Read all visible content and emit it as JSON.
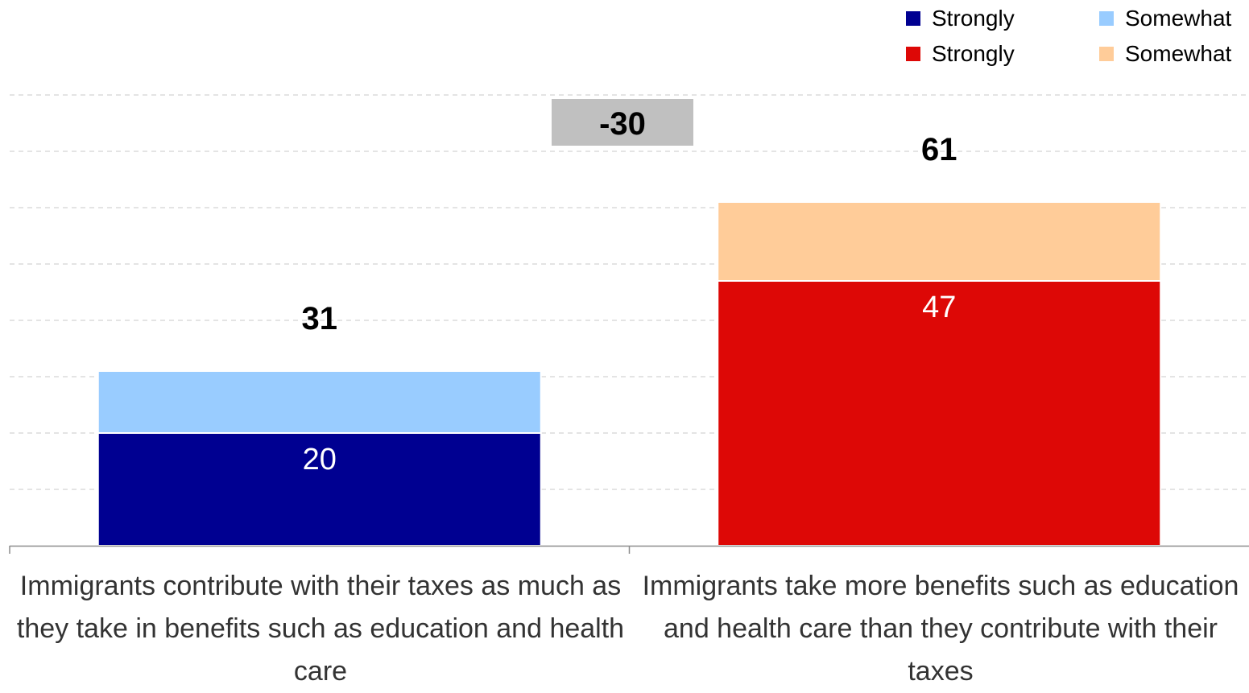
{
  "chart_data": {
    "type": "bar",
    "stacked": true,
    "title": "",
    "categories": [
      "Immigrants contribute with their taxes as much as they take in benefits such as education and health care",
      "Immigrants take more benefits such as education and health care than they contribute with their taxes"
    ],
    "bars": [
      {
        "category_index": 0,
        "segments": [
          {
            "legend": "Strongly",
            "value": 20,
            "label": "20",
            "color": "#000091"
          },
          {
            "legend": "Somewhat",
            "value": 11,
            "label": "",
            "color": "#99ccff"
          }
        ],
        "total": 31,
        "total_label": "31"
      },
      {
        "category_index": 1,
        "segments": [
          {
            "legend": "Strongly",
            "value": 47,
            "label": "47",
            "color": "#dd0806"
          },
          {
            "legend": "Somewhat",
            "value": 14,
            "label": "",
            "color": "#ffcc99"
          }
        ],
        "total": 61,
        "total_label": "61"
      }
    ],
    "difference_label": "-30",
    "difference_box_color": "#c0c0c0",
    "legend": [
      {
        "label": "Strongly",
        "color": "#000091"
      },
      {
        "label": "Somewhat",
        "color": "#99ccff"
      },
      {
        "label": "Strongly",
        "color": "#dd0806"
      },
      {
        "label": "Somewhat",
        "color": "#ffcc99"
      }
    ],
    "legend_position": "top-right",
    "ylim": [
      0,
      80
    ],
    "grid": true,
    "grid_style": "dashed",
    "y_ticks_visible": false
  }
}
